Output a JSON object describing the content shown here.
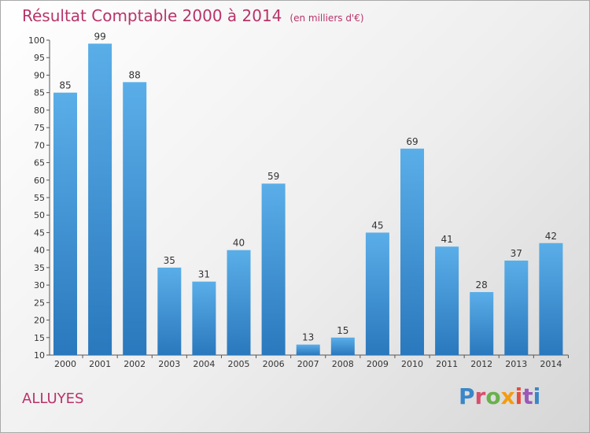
{
  "header": {
    "title": "Résultat Comptable 2000 à 2014",
    "subtitle": "(en milliers d'€)"
  },
  "commune": "ALLUYES",
  "logo": {
    "text": "Proxiti",
    "letter_colors": [
      "#3a86c8",
      "#d94f6b",
      "#6ab04c",
      "#f39c12",
      "#e74c3c",
      "#9b59b6",
      "#3a86c8"
    ]
  },
  "colors": {
    "bar_top": "#5aaee8",
    "bar_bottom": "#2a78bd",
    "title": "#b8336a"
  },
  "chart_data": {
    "type": "bar",
    "title": "Résultat Comptable 2000 à 2014",
    "categories": [
      "2000",
      "2001",
      "2002",
      "2003",
      "2004",
      "2005",
      "2006",
      "2007",
      "2008",
      "2009",
      "2010",
      "2011",
      "2012",
      "2013",
      "2014"
    ],
    "values": [
      85,
      99,
      88,
      35,
      31,
      40,
      59,
      13,
      15,
      45,
      69,
      41,
      28,
      37,
      42
    ],
    "ylim": [
      10,
      100
    ],
    "yticks": [
      10,
      15,
      20,
      25,
      30,
      35,
      40,
      45,
      50,
      55,
      60,
      65,
      70,
      75,
      80,
      85,
      90,
      95,
      100
    ],
    "grid": false,
    "xlabel": "",
    "ylabel": ""
  }
}
